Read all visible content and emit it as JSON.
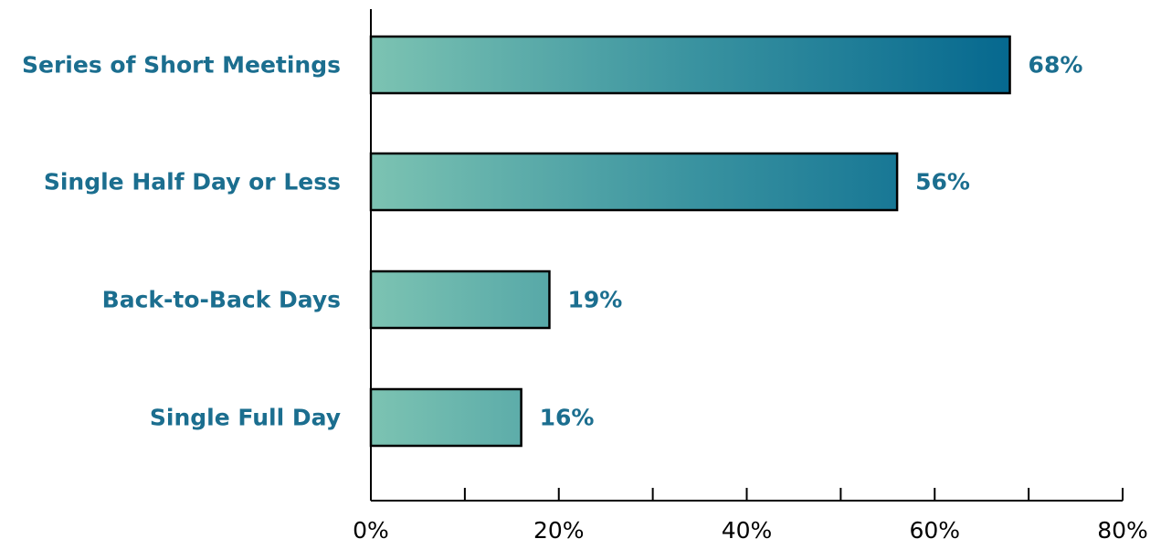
{
  "chart_data": {
    "type": "bar",
    "orientation": "horizontal",
    "categories": [
      "Series of Short Meetings",
      "Single Half Day or Less",
      "Back-to-Back Days",
      "Single Full Day"
    ],
    "values": [
      68,
      56,
      19,
      16
    ],
    "value_labels": [
      "68%",
      "56%",
      "19%",
      "16%"
    ],
    "xlim": [
      0,
      80
    ],
    "xticks": [
      0,
      20,
      40,
      60,
      80
    ],
    "xtick_labels": [
      "0%",
      "20%",
      "40%",
      "60%",
      "80%"
    ],
    "minor_xticks": [
      10,
      30,
      50,
      70
    ],
    "title": "",
    "xlabel": "",
    "ylabel": "",
    "grid": false,
    "legend": "none"
  },
  "colors": {
    "label_text": "#1b6e8f",
    "bar_start": "#7cc3b2",
    "bar_mid": "#3a93a0",
    "bar_end": "#05688f",
    "axis": "#000000"
  }
}
